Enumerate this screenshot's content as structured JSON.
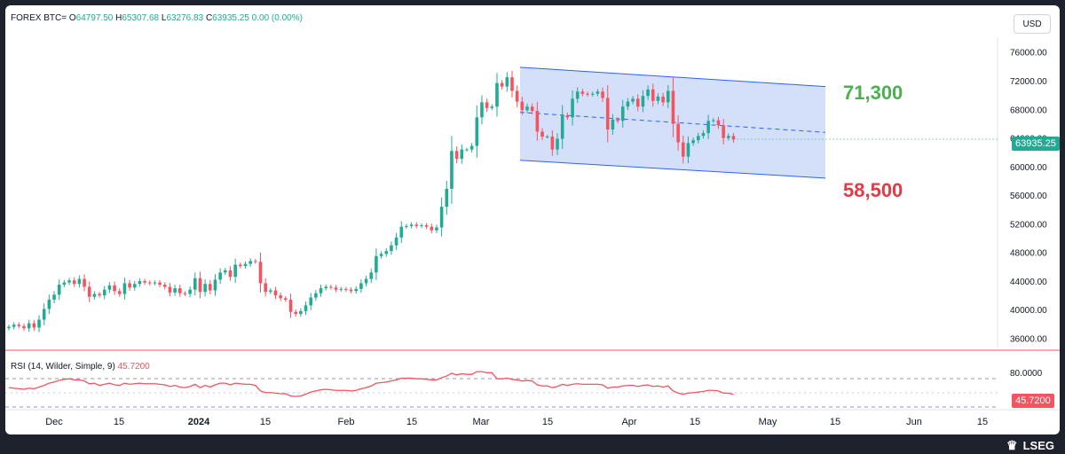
{
  "header": {
    "symbol": "FOREX BTC=",
    "o_label": "O",
    "o_value": "64797.50",
    "h_label": "H",
    "h_value": "65307.68",
    "l_label": "L",
    "l_value": "63276.83",
    "c_label": "C",
    "c_value": "63935.25",
    "change": "0.00 (0.00%)"
  },
  "currency_button": "USD",
  "last_price_tag": "63935.25",
  "annotations": {
    "upper_level": "71,300",
    "lower_level": "58,500"
  },
  "rsi": {
    "label": "RSI (14, Wilder, Simple, 9)",
    "value": "45.7200",
    "tag": "45.7200",
    "axis_tick": "80.0000"
  },
  "brand": {
    "name": "LSEG"
  },
  "colors": {
    "up": "#22ab94",
    "down": "#f7525f",
    "channel_fill": "#c6d6f7",
    "channel_line": "#2962ff",
    "annotation_up": "#4caf50",
    "annotation_down": "#e53945",
    "rsi_line": "#f7525f"
  },
  "chart_data": [
    {
      "type": "candlestick",
      "title": "FOREX BTC=",
      "y_axis": {
        "ticks": [
          36000,
          40000,
          44000,
          48000,
          52000,
          56000,
          60000,
          64000,
          68000,
          72000,
          76000
        ],
        "tick_labels": [
          "36000.00",
          "40000.00",
          "44000.00",
          "48000.00",
          "52000.00",
          "56000.00",
          "60000.00",
          "64000.00",
          "68000.00",
          "72000.00",
          "76000.00"
        ],
        "ylim": [
          34800,
          78200
        ]
      },
      "x_axis": {
        "tick_labels": [
          "Dec",
          "15",
          "2024",
          "15",
          "Feb",
          "15",
          "Mar",
          "15",
          "Apr",
          "15",
          "May",
          "15",
          "Jun",
          "15"
        ]
      },
      "last_close": 63935.25,
      "grid": false,
      "channel": {
        "upper_start": 74000,
        "upper_end": 71300,
        "lower_start": 61000,
        "lower_end": 58500,
        "mid_start": 67700,
        "mid_end": 64900
      },
      "series": [
        {
          "values": [
            37700,
            38000,
            37800,
            37500,
            38200,
            37600,
            38700,
            40200,
            41500,
            42200,
            43600,
            43900,
            44200,
            43700,
            44400,
            43300,
            41900,
            42300,
            42100,
            42900,
            43500,
            42700,
            42300,
            43800,
            43200,
            43700,
            44100,
            43900,
            43800,
            43900,
            43600,
            43300,
            42500,
            43100,
            42400,
            42300,
            42900,
            44500,
            42600,
            43700,
            42800,
            44300,
            45300,
            45600,
            44700,
            46400,
            46200,
            46500,
            46900,
            46800,
            43800,
            42600,
            42800,
            42100,
            41700,
            41500,
            39800,
            39500,
            39900,
            40700,
            41800,
            42400,
            43100,
            43300,
            43200,
            42900,
            43000,
            42900,
            42700,
            43000,
            43800,
            44400,
            45300,
            47600,
            47900,
            48300,
            49100,
            50200,
            51700,
            51800,
            52000,
            51800,
            51900,
            51700,
            51200,
            51600,
            54500,
            57000,
            62300,
            61200,
            62500,
            62500,
            63000,
            67000,
            69100,
            68300,
            68500,
            71800,
            71300,
            72600,
            70700,
            69200,
            68000,
            68500,
            67900,
            65000,
            64300,
            64300,
            62500,
            64000,
            67300,
            67000,
            69600,
            70600,
            70300,
            70200,
            70300,
            70600,
            69700,
            65300,
            66700,
            66500,
            68500,
            69200,
            69600,
            68500,
            70000,
            70900,
            69300,
            69900,
            69100,
            70700,
            66100,
            63500,
            61500,
            63400,
            63800,
            64400,
            64800,
            66500,
            66600,
            65900,
            64100,
            64400,
            63900
          ]
        }
      ]
    },
    {
      "type": "line",
      "title": "RSI (14, Wilder, Simple, 9)",
      "y_axis": {
        "tick_labels": [
          "80.0000"
        ]
      },
      "levels": [
        70,
        50,
        30
      ],
      "last_value": 45.72,
      "series": [
        {
          "values": [
            58,
            57,
            56,
            55,
            57,
            56,
            59,
            62,
            66,
            68,
            71,
            73,
            74,
            72,
            72,
            70,
            65,
            66,
            62,
            64,
            66,
            63,
            62,
            66,
            64,
            65,
            66,
            65,
            65,
            65,
            64,
            63,
            60,
            62,
            59,
            58,
            60,
            64,
            58,
            62,
            59,
            63,
            66,
            66,
            63,
            66,
            65,
            64,
            64,
            62,
            52,
            49,
            49,
            48,
            47,
            47,
            43,
            42,
            43,
            46,
            50,
            52,
            54,
            55,
            54,
            53,
            53,
            53,
            52,
            53,
            56,
            58,
            61,
            66,
            67,
            68,
            70,
            72,
            75,
            75,
            75,
            74,
            74,
            73,
            72,
            72,
            76,
            79,
            84,
            81,
            83,
            82,
            82,
            87,
            87,
            85,
            85,
            74,
            74,
            75,
            73,
            72,
            70,
            71,
            70,
            63,
            61,
            61,
            58,
            60,
            64,
            62,
            64,
            65,
            64,
            64,
            64,
            64,
            63,
            57,
            59,
            59,
            61,
            62,
            62,
            60,
            62,
            63,
            60,
            61,
            59,
            61,
            52,
            48,
            46,
            48,
            49,
            50,
            51,
            53,
            53,
            52,
            48,
            48,
            45.72
          ]
        }
      ]
    }
  ]
}
